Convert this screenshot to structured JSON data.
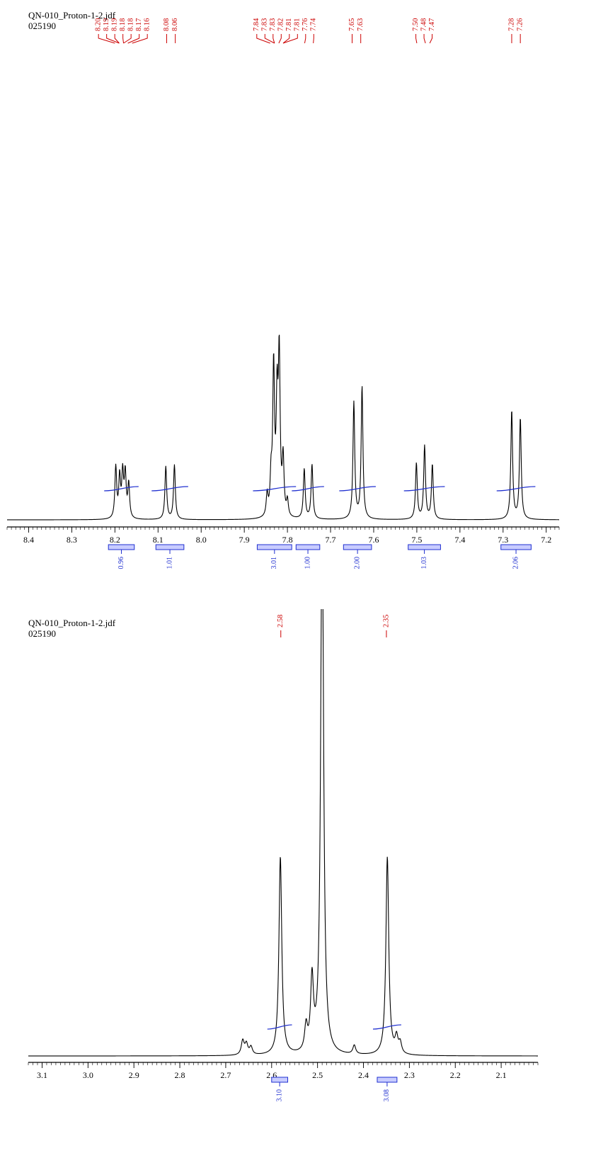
{
  "colors": {
    "spectrum": "#000000",
    "peak_label": "#cc0000",
    "integral": "#1f2fd0",
    "integral_fill": "#c8ccff"
  },
  "chart_data": [
    {
      "type": "line",
      "title": "QN-010_Proton-1-2.jdf",
      "subtitle": "025190",
      "xlabel": "",
      "ylabel": "",
      "xlim": [
        8.45,
        7.17
      ],
      "x_reversed": true,
      "grid": false,
      "ticks": [
        "8.4",
        "8.3",
        "8.2",
        "8.1",
        "8.0",
        "7.9",
        "7.8",
        "7.7",
        "7.6",
        "7.5",
        "7.4",
        "7.3",
        "7.2"
      ],
      "tick_values": [
        8.4,
        8.3,
        8.2,
        8.1,
        8.0,
        7.9,
        7.8,
        7.7,
        7.6,
        7.5,
        7.4,
        7.3,
        7.2
      ],
      "peak_labels": [
        {
          "ppm": 8.2,
          "text": "8.20"
        },
        {
          "ppm": 8.19,
          "text": "8.19"
        },
        {
          "ppm": 8.19,
          "text": "8.19"
        },
        {
          "ppm": 8.18,
          "text": "8.18"
        },
        {
          "ppm": 8.18,
          "text": "8.18"
        },
        {
          "ppm": 8.17,
          "text": "8.17"
        },
        {
          "ppm": 8.16,
          "text": "8.16"
        },
        {
          "ppm": 8.08,
          "text": "8.08"
        },
        {
          "ppm": 8.06,
          "text": "8.06"
        },
        {
          "ppm": 7.84,
          "text": "7.84"
        },
        {
          "ppm": 7.83,
          "text": "7.83"
        },
        {
          "ppm": 7.83,
          "text": "7.83"
        },
        {
          "ppm": 7.82,
          "text": "7.82"
        },
        {
          "ppm": 7.81,
          "text": "7.81"
        },
        {
          "ppm": 7.81,
          "text": "7.81"
        },
        {
          "ppm": 7.76,
          "text": "7.76"
        },
        {
          "ppm": 7.74,
          "text": "7.74"
        },
        {
          "ppm": 7.65,
          "text": "7.65"
        },
        {
          "ppm": 7.63,
          "text": "7.63"
        },
        {
          "ppm": 7.5,
          "text": "7.50"
        },
        {
          "ppm": 7.48,
          "text": "7.48"
        },
        {
          "ppm": 7.47,
          "text": "7.47"
        },
        {
          "ppm": 7.28,
          "text": "7.28"
        },
        {
          "ppm": 7.26,
          "text": "7.26"
        }
      ],
      "peaks": [
        {
          "ppm": 8.198,
          "height": 0.33
        },
        {
          "ppm": 8.189,
          "height": 0.26
        },
        {
          "ppm": 8.182,
          "height": 0.28
        },
        {
          "ppm": 8.176,
          "height": 0.28
        },
        {
          "ppm": 8.168,
          "height": 0.22
        },
        {
          "ppm": 8.082,
          "height": 0.34
        },
        {
          "ppm": 8.062,
          "height": 0.35
        },
        {
          "ppm": 7.847,
          "height": 0.14
        },
        {
          "ppm": 7.838,
          "height": 0.23
        },
        {
          "ppm": 7.832,
          "height": 0.95
        },
        {
          "ppm": 7.824,
          "height": 0.7
        },
        {
          "ppm": 7.819,
          "height": 1.0
        },
        {
          "ppm": 7.81,
          "height": 0.36
        },
        {
          "ppm": 7.8,
          "height": 0.1
        },
        {
          "ppm": 7.761,
          "height": 0.32
        },
        {
          "ppm": 7.743,
          "height": 0.35
        },
        {
          "ppm": 7.646,
          "height": 0.75
        },
        {
          "ppm": 7.627,
          "height": 0.85
        },
        {
          "ppm": 7.501,
          "height": 0.36
        },
        {
          "ppm": 7.482,
          "height": 0.47
        },
        {
          "ppm": 7.464,
          "height": 0.35
        },
        {
          "ppm": 7.28,
          "height": 0.7
        },
        {
          "ppm": 7.26,
          "height": 0.65
        }
      ],
      "integrals": [
        {
          "from": 8.215,
          "to": 8.155,
          "value": "0.96"
        },
        {
          "from": 8.105,
          "to": 8.04,
          "value": "1.01"
        },
        {
          "from": 7.87,
          "to": 7.79,
          "value": "3.01"
        },
        {
          "from": 7.78,
          "to": 7.725,
          "value": "1.00"
        },
        {
          "from": 7.67,
          "to": 7.605,
          "value": "2.00"
        },
        {
          "from": 7.52,
          "to": 7.445,
          "value": "1.03"
        },
        {
          "from": 7.305,
          "to": 7.235,
          "value": "2.06"
        }
      ]
    },
    {
      "type": "line",
      "title": "QN-010_Proton-1-2.jdf",
      "subtitle": "025190",
      "xlabel": "",
      "ylabel": "",
      "xlim": [
        3.13,
        2.02
      ],
      "x_reversed": true,
      "grid": false,
      "ticks": [
        "3.1",
        "3.0",
        "2.9",
        "2.8",
        "2.7",
        "2.6",
        "2.5",
        "2.4",
        "2.3",
        "2.2",
        "2.1"
      ],
      "tick_values": [
        3.1,
        3.0,
        2.9,
        2.8,
        2.7,
        2.6,
        2.5,
        2.4,
        2.3,
        2.2,
        2.1
      ],
      "peak_labels": [
        {
          "ppm": 2.58,
          "text": "2.58"
        },
        {
          "ppm": 2.35,
          "text": "2.35"
        }
      ],
      "peaks": [
        {
          "ppm": 2.663,
          "height": 0.04
        },
        {
          "ppm": 2.655,
          "height": 0.03
        },
        {
          "ppm": 2.645,
          "height": 0.022
        },
        {
          "ppm": 2.581,
          "height": 0.56
        },
        {
          "ppm": 2.525,
          "height": 0.07
        },
        {
          "ppm": 2.512,
          "height": 0.2
        },
        {
          "ppm": 2.49,
          "height": 1.6
        },
        {
          "ppm": 2.42,
          "height": 0.025
        },
        {
          "ppm": 2.348,
          "height": 0.56
        },
        {
          "ppm": 2.328,
          "height": 0.045
        },
        {
          "ppm": 2.32,
          "height": 0.03
        }
      ],
      "integrals": [
        {
          "from": 2.6,
          "to": 2.565,
          "value": "3.10"
        },
        {
          "from": 2.37,
          "to": 2.327,
          "value": "3.08"
        }
      ]
    }
  ]
}
